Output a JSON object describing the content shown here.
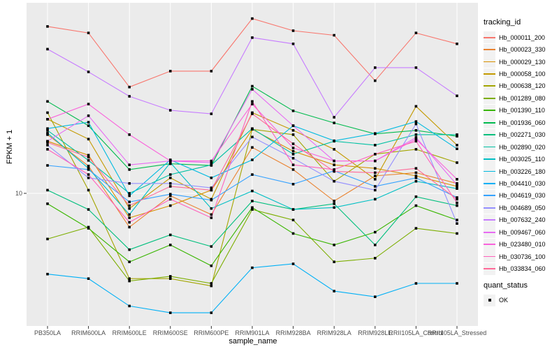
{
  "chart": {
    "y_axis_label": "FPKM + 1",
    "x_axis_label": "sample_name",
    "legend": {
      "tracking_title": "tracking_id",
      "quant_title": "quant_status",
      "quant_ok_label": "OK"
    }
  },
  "chart_data": {
    "type": "line",
    "title": "",
    "xlabel": "sample_name",
    "ylabel": "FPKM + 1",
    "y_scale": "log10",
    "y_tick_labels": [
      "10"
    ],
    "ylim": [
      2,
      95
    ],
    "grid": true,
    "legend_position": "right",
    "panel_bg": "#EBEBEB",
    "grid_color": "#FFFFFF",
    "point_shape": "filled-square",
    "point_color": "#000000",
    "quant_status_items": [
      "OK"
    ],
    "x_categories": [
      "PB350LA",
      "RRIM600LA",
      "RRIM600LE",
      "RRIM600SE",
      "RRIM600PE",
      "RRIM901LA",
      "RRIM928BA",
      "RRIM928LA",
      "RRIM928LE",
      "RRII105LA_Control",
      "RRII105LA_Stressed"
    ],
    "series": [
      {
        "name": "Hb_000011_200",
        "color": "#F8766D",
        "values": [
          78,
          72,
          37,
          45,
          45,
          86,
          74,
          70,
          40,
          72,
          63
        ]
      },
      {
        "name": "Hb_000023_330",
        "color": "#EA8331",
        "values": [
          20.6,
          14,
          6.6,
          9.7,
          7.7,
          17.6,
          13.4,
          9.1,
          12.4,
          12.9,
          11.3
        ]
      },
      {
        "name": "Hb_000029_130",
        "color": "#D89000",
        "values": [
          19,
          16,
          7.4,
          8.6,
          10.4,
          22,
          16.8,
          14.2,
          13.6,
          12.4,
          10.9
        ]
      },
      {
        "name": "Hb_000058_100",
        "color": "#C49A00",
        "values": [
          24.9,
          19.5,
          8.3,
          12.1,
          9.3,
          27,
          21.7,
          17.2,
          11.9,
          29.2,
          18.1
        ]
      },
      {
        "name": "Hb_000638_120",
        "color": "#A3A500",
        "values": [
          27,
          10.4,
          3.5,
          3.5,
          3.2,
          22,
          20.6,
          11.6,
          16.2,
          17.2,
          14.6
        ]
      },
      {
        "name": "Hb_001289_080",
        "color": "#7CAE00",
        "values": [
          5.7,
          6.6,
          3.4,
          3.6,
          3.3,
          8.2,
          7.2,
          4.3,
          4.5,
          6.5,
          6.1
        ]
      },
      {
        "name": "Hb_001390_110",
        "color": "#39B600",
        "values": [
          8.8,
          6.5,
          4.3,
          5.3,
          4.1,
          8.4,
          6.1,
          5.3,
          6.2,
          8.6,
          7.2
        ]
      },
      {
        "name": "Hb_001936_060",
        "color": "#00BB4E",
        "values": [
          31,
          23,
          13.4,
          14.4,
          14.1,
          37.4,
          27.6,
          23.8,
          20.8,
          21.7,
          20.2
        ]
      },
      {
        "name": "Hb_002271_030",
        "color": "#00BF7D",
        "values": [
          10.4,
          8.2,
          5.0,
          6.0,
          5.2,
          9.1,
          8.2,
          8.8,
          5.3,
          9.6,
          8.6
        ]
      },
      {
        "name": "Hb_002890_020",
        "color": "#00C1A3",
        "values": [
          21.7,
          15,
          10,
          12.6,
          14.2,
          22.2,
          16.2,
          19,
          18.1,
          20.6,
          20.6
        ]
      },
      {
        "name": "Hb_003025_110",
        "color": "#00BFC4",
        "values": [
          21,
          13.6,
          7.7,
          14.6,
          8.3,
          10.3,
          8.2,
          8.4,
          9.3,
          11.6,
          10.6
        ]
      },
      {
        "name": "Hb_003226_180",
        "color": "#00BAE0",
        "values": [
          22.2,
          24,
          9.7,
          15.1,
          12.1,
          15.1,
          23,
          19.1,
          20.9,
          24.2,
          17.3
        ]
      },
      {
        "name": "Hb_004410_030",
        "color": "#00B0F6",
        "values": [
          3.7,
          3.5,
          2.5,
          2.3,
          2.3,
          4.0,
          4.2,
          3.0,
          2.8,
          3.3,
          3.3
        ]
      },
      {
        "name": "Hb_004619_030",
        "color": "#35A2FF",
        "values": [
          14.1,
          13.4,
          9.0,
          9.9,
          9.2,
          12.6,
          11.2,
          13.2,
          10.9,
          12.1,
          9.5
        ]
      },
      {
        "name": "Hb_004689_050",
        "color": "#9590FF",
        "values": [
          18.1,
          12.1,
          11.3,
          11.3,
          10.7,
          20,
          15.4,
          11.6,
          10.4,
          23.5,
          6.9
        ]
      },
      {
        "name": "Hb_007632_240",
        "color": "#C77CFF",
        "values": [
          59,
          44.6,
          33,
          27.8,
          26.6,
          68,
          63,
          25.5,
          47,
          47,
          33.2
        ]
      },
      {
        "name": "Hb_009467_060",
        "color": "#E76BF3",
        "values": [
          19,
          26,
          14.2,
          14.9,
          14.6,
          36,
          23,
          14.9,
          14.9,
          19.9,
          11.1
        ]
      },
      {
        "name": "Hb_023480_010",
        "color": "#FA62DB",
        "values": [
          24.9,
          30,
          20.6,
          14.9,
          14.9,
          30,
          17.5,
          14.9,
          14.9,
          19.5,
          11.9
        ]
      },
      {
        "name": "Hb_030736_100",
        "color": "#FF62BC",
        "values": [
          17.2,
          12.6,
          7.0,
          9.3,
          7.4,
          31,
          14.2,
          13.4,
          16.2,
          19.0,
          8.9
        ]
      },
      {
        "name": "Hb_033834_060",
        "color": "#FF6A98",
        "values": [
          18.7,
          15.6,
          8.6,
          10.9,
          10.4,
          26.6,
          18.4,
          13.1,
          12.9,
          13.6,
          9.3
        ]
      }
    ]
  }
}
